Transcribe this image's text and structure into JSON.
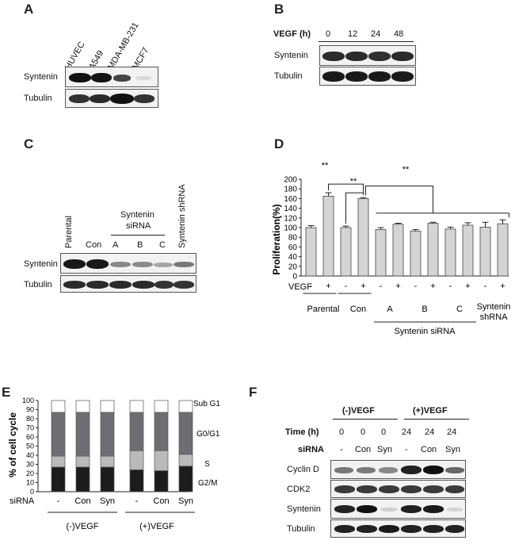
{
  "panels": {
    "A": {
      "letter": "A",
      "lanes": [
        "HUVEC",
        "A549",
        "MDA-MB-231",
        "MCF7"
      ],
      "rows": [
        "Syntenin",
        "Tubulin"
      ]
    },
    "B": {
      "letter": "B",
      "condition_label": "VEGF (h)",
      "timepoints": [
        "0",
        "12",
        "24",
        "48"
      ],
      "rows": [
        "Syntenin",
        "Tubulin"
      ]
    },
    "C": {
      "letter": "C",
      "lanes_top": [
        "Parental",
        "Con"
      ],
      "group_label_line1": "Syntenin",
      "group_label_line2": "siRNA",
      "group_lanes": [
        "A",
        "B",
        "C"
      ],
      "last_lane": "Syntenin shRNA",
      "rows": [
        "Syntenin",
        "Tubulin"
      ]
    },
    "D": {
      "letter": "D",
      "significance": "**",
      "vegf_label": "VEGF",
      "group_labels": [
        "Parental",
        "Con",
        "A",
        "B",
        "C"
      ],
      "group_last_line1": "Syntenin",
      "group_last_line2": "shRNA",
      "sirna_label": "Syntenin siRNA"
    },
    "E": {
      "letter": "E",
      "sirna_label": "siRNA",
      "group_minus": "(-)VEGF",
      "group_plus": "(+)VEGF",
      "phase_labels": [
        "Sub G1",
        "G0/G1",
        "S",
        "G2/M"
      ]
    },
    "F": {
      "letter": "F",
      "group_minus": "(-)VEGF",
      "group_plus": "(+)VEGF",
      "time_label": "Time (h)",
      "time_values": [
        "0",
        "0",
        "0",
        "24",
        "24",
        "24"
      ],
      "sirna_label": "siRNA",
      "sirna_values": [
        "-",
        "Con",
        "Syn",
        "-",
        "Con",
        "Syn"
      ],
      "rows": [
        "Cyclin D",
        "CDK2",
        "Syntenin",
        "Tubulin"
      ]
    }
  },
  "chart_data": [
    {
      "type": "bar",
      "panel": "D",
      "ylabel": "Proliferation(%)",
      "ylim": [
        0,
        200
      ],
      "yticks": [
        0,
        20,
        40,
        60,
        80,
        100,
        120,
        140,
        160,
        180,
        200
      ],
      "categories": [
        "Parental -",
        "Parental +",
        "Con -",
        "Con +",
        "A -",
        "A +",
        "B -",
        "B +",
        "C -",
        "C +",
        "shRNA -",
        "shRNA +"
      ],
      "x_tick_labels": [
        "-",
        "+",
        "-",
        "+",
        "-",
        "+",
        "-",
        "+",
        "-",
        "+",
        "-",
        "+"
      ],
      "values": [
        100,
        165,
        100,
        160,
        96,
        107,
        93,
        109,
        97,
        105,
        101,
        108
      ],
      "errors": [
        4,
        7,
        3,
        2,
        4,
        2,
        3,
        2,
        4,
        5,
        10,
        8
      ],
      "bar_color": "#d3d4d6"
    },
    {
      "type": "bar",
      "panel": "E",
      "stacked": true,
      "ylabel": "% of cell cycle",
      "ylim": [
        0,
        100
      ],
      "yticks": [
        0,
        10,
        20,
        30,
        40,
        50,
        60,
        70,
        80,
        90,
        100
      ],
      "x_tick_labels": [
        "-",
        "Con",
        "Syn",
        "-",
        "Con",
        "Syn"
      ],
      "series": [
        {
          "name": "G2/M",
          "color": "#1c1c1c",
          "values": [
            27,
            27,
            27,
            24,
            23,
            28
          ]
        },
        {
          "name": "S",
          "color": "#b9babc",
          "values": [
            12,
            12,
            12,
            21,
            22,
            13
          ]
        },
        {
          "name": "G0/G1",
          "color": "#6c6e73",
          "values": [
            48,
            48,
            48,
            42,
            42,
            46
          ]
        },
        {
          "name": "Sub G1",
          "color": "#ffffff",
          "values": [
            13,
            13,
            13,
            13,
            13,
            13
          ]
        }
      ]
    }
  ]
}
